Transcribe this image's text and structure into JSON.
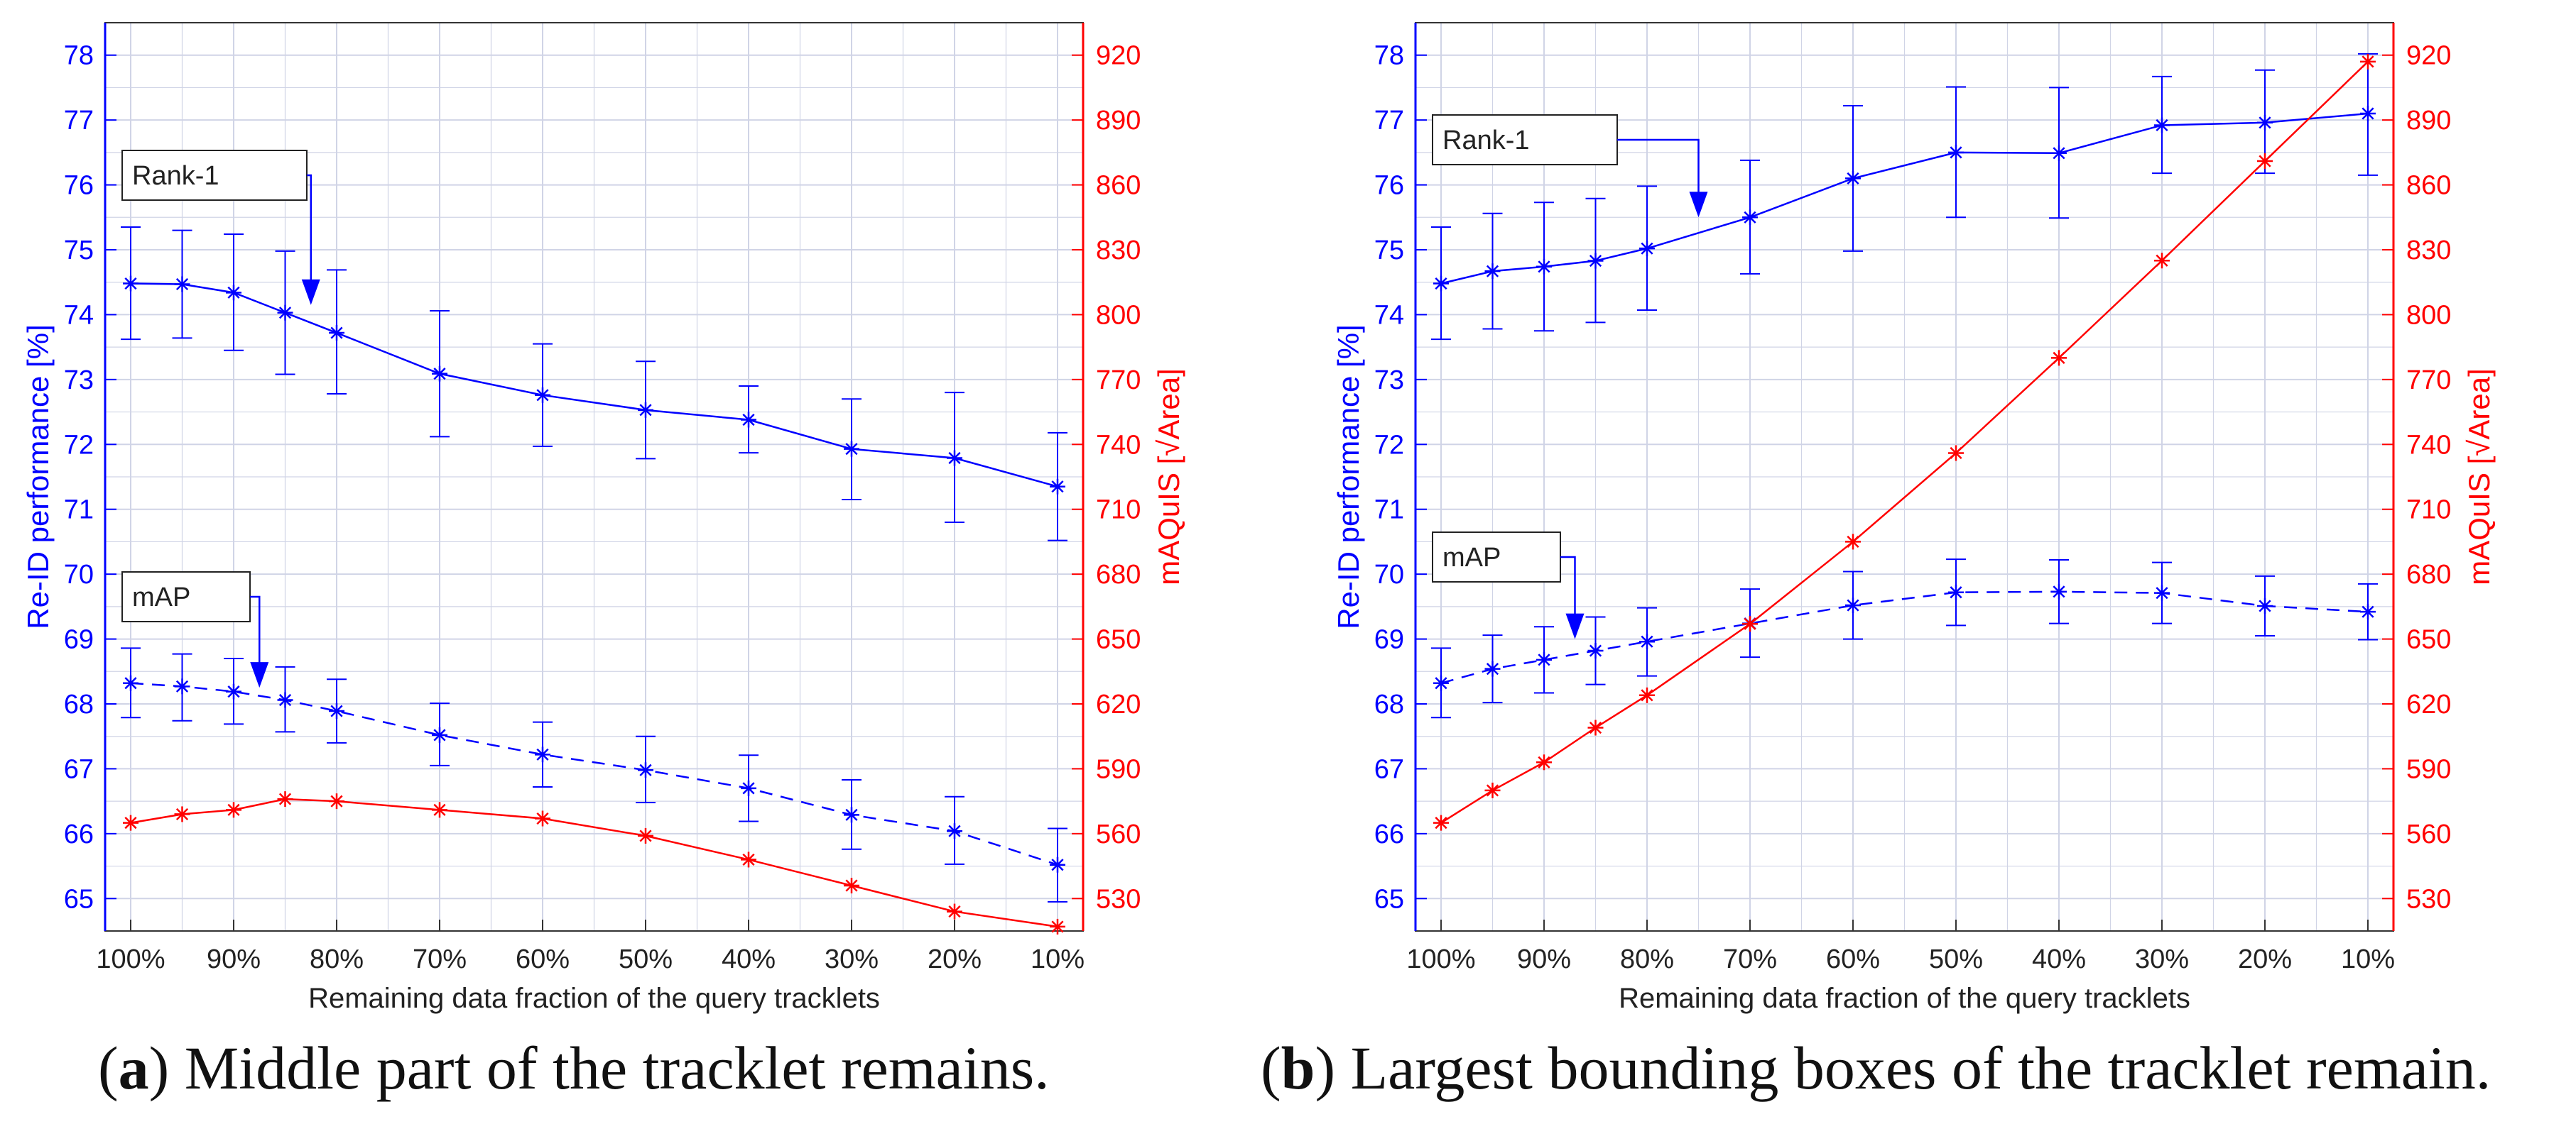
{
  "colors": {
    "rank1": "#0000ff",
    "map": "#0000ff",
    "maquis": "#ff0000",
    "grid": "#d0d4e6"
  },
  "x_categories": [
    "100%",
    "95%",
    "90%",
    "85%",
    "80%",
    "70%",
    "60%",
    "50%",
    "40%",
    "30%",
    "20%",
    "10%"
  ],
  "x_tick_labels": [
    "100%",
    "90%",
    "80%",
    "70%",
    "60%",
    "50%",
    "40%",
    "30%",
    "20%",
    "10%"
  ],
  "captions": [
    {
      "letter": "a",
      "open": "(",
      "close": ")",
      "text": " Middle part of the tracklet remains."
    },
    {
      "letter": "b",
      "open": "(",
      "close": ")",
      "text": " Largest bounding boxes of the tracklet remain."
    }
  ],
  "chart_data": [
    {
      "id": "a",
      "type": "line",
      "xlabel": "Remaining data fraction of the query tracklets",
      "ylabel": "Re-ID performance [%]",
      "y2label": "mAQuIS [√Area]",
      "ylim": [
        64.5,
        78.5
      ],
      "yticks": [
        65,
        66,
        67,
        68,
        69,
        70,
        71,
        72,
        73,
        74,
        75,
        76,
        77,
        78
      ],
      "y2lim": [
        515,
        935
      ],
      "y2ticks": [
        530,
        560,
        590,
        620,
        650,
        680,
        710,
        740,
        770,
        800,
        830,
        860,
        890,
        920
      ],
      "x_positions": [
        100,
        95,
        90,
        85,
        80,
        70,
        60,
        50,
        40,
        30,
        20,
        10
      ],
      "grid": true,
      "series": [
        {
          "name": "Rank-1",
          "axis": "left",
          "style": "solid",
          "values": [
            74.48,
            74.47,
            74.34,
            74.03,
            73.72,
            73.09,
            72.76,
            72.53,
            72.38,
            71.93,
            71.79,
            71.35
          ],
          "err_low": [
            73.62,
            73.64,
            73.45,
            73.08,
            72.78,
            72.12,
            71.97,
            71.78,
            71.87,
            71.15,
            70.8,
            70.52
          ],
          "err_high": [
            75.35,
            75.3,
            75.24,
            74.98,
            74.69,
            74.06,
            73.55,
            73.28,
            72.9,
            72.7,
            72.8,
            72.18
          ]
        },
        {
          "name": "mAP",
          "axis": "left",
          "style": "dashed",
          "values": [
            68.32,
            68.27,
            68.19,
            68.06,
            67.89,
            67.52,
            67.22,
            66.98,
            66.7,
            66.29,
            66.04,
            65.52
          ],
          "err_low": [
            67.79,
            67.74,
            67.69,
            67.57,
            67.4,
            67.05,
            66.72,
            66.48,
            66.19,
            65.76,
            65.53,
            64.95
          ],
          "err_high": [
            68.86,
            68.77,
            68.7,
            68.57,
            68.38,
            68.01,
            67.72,
            67.5,
            67.21,
            66.83,
            66.57,
            66.08
          ]
        },
        {
          "name": "mAQuIS",
          "axis": "right",
          "style": "solid",
          "values": [
            565,
            569,
            571,
            576,
            575,
            571,
            567,
            559,
            548,
            536,
            524,
            517
          ]
        }
      ],
      "annotations": [
        {
          "label": "Rank-1",
          "target_x": 82.5,
          "target_y": 74.15
        },
        {
          "label": "mAP",
          "target_x": 87.5,
          "target_y": 68.25
        }
      ]
    },
    {
      "id": "b",
      "type": "line",
      "xlabel": "Remaining data fraction of the query tracklets",
      "ylabel": "Re-ID performance [%]",
      "y2label": "mAQuIS [√Area]",
      "ylim": [
        64.5,
        78.5
      ],
      "yticks": [
        65,
        66,
        67,
        68,
        69,
        70,
        71,
        72,
        73,
        74,
        75,
        76,
        77,
        78
      ],
      "y2lim": [
        515,
        935
      ],
      "y2ticks": [
        530,
        560,
        590,
        620,
        650,
        680,
        710,
        740,
        770,
        800,
        830,
        860,
        890,
        920
      ],
      "x_positions": [
        100,
        95,
        90,
        85,
        80,
        70,
        60,
        50,
        40,
        30,
        20,
        10
      ],
      "grid": true,
      "series": [
        {
          "name": "Rank-1",
          "axis": "left",
          "style": "solid",
          "values": [
            74.48,
            74.67,
            74.74,
            74.83,
            75.02,
            75.5,
            76.1,
            76.5,
            76.49,
            76.92,
            76.96,
            77.1
          ],
          "err_low": [
            73.62,
            73.78,
            73.75,
            73.88,
            74.07,
            74.63,
            74.98,
            75.5,
            75.49,
            76.18,
            76.18,
            76.15
          ],
          "err_high": [
            75.35,
            75.56,
            75.73,
            75.79,
            75.98,
            76.38,
            77.22,
            77.51,
            77.5,
            77.67,
            77.77,
            78.02
          ]
        },
        {
          "name": "mAP",
          "axis": "left",
          "style": "dashed",
          "values": [
            68.32,
            68.54,
            68.68,
            68.82,
            68.96,
            69.24,
            69.52,
            69.72,
            69.73,
            69.71,
            69.51,
            69.42
          ],
          "err_low": [
            67.79,
            68.02,
            68.17,
            68.3,
            68.43,
            68.72,
            69.0,
            69.21,
            69.24,
            69.24,
            69.05,
            68.99
          ],
          "err_high": [
            68.86,
            69.06,
            69.19,
            69.34,
            69.48,
            69.77,
            70.04,
            70.23,
            70.22,
            70.18,
            69.97,
            69.85
          ]
        },
        {
          "name": "mAQuIS",
          "axis": "right",
          "style": "solid",
          "values": [
            565,
            580,
            593,
            609,
            624,
            657,
            695,
            736,
            780,
            825,
            871,
            917
          ]
        }
      ],
      "annotations": [
        {
          "label": "Rank-1",
          "target_x": 75,
          "target_y": 75.5
        },
        {
          "label": "mAP",
          "target_x": 87,
          "target_y": 69.0
        }
      ]
    }
  ]
}
